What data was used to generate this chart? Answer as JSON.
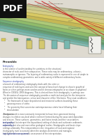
{
  "bg_color": "#ffffff",
  "pdf_badge_color": "#111111",
  "pdf_text_color": "#ffffff",
  "doc_bg": "#ffffff",
  "diagram_bg": "#e8e8e0",
  "bed_colors": [
    "#b0b090",
    "#c8c890",
    "#d4cc80",
    "#d8c860",
    "#c8b84a",
    "#b0c888",
    "#8ab878",
    "#70a870",
    "#5a9870",
    "#60a8a0",
    "#88b8b0",
    "#a8c8c0"
  ],
  "red_line_color": "#cc2222",
  "dark_line_color": "#555540",
  "text_dark": "#222222",
  "text_gray": "#555555",
  "text_blue": "#3344aa",
  "text_red": "#993333",
  "preamble_color": "#222222",
  "body_fontsize": 1.9,
  "heading_fontsize": 2.8
}
